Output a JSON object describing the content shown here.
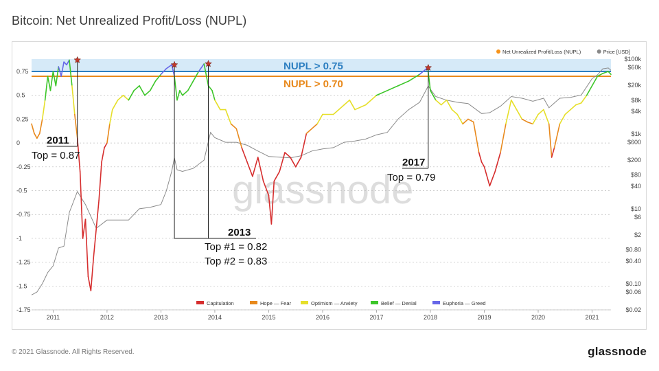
{
  "page": {
    "title": "Bitcoin: Net Unrealized Profit/Loss (NUPL)",
    "copyright": "© 2021 Glassnode. All Rights Reserved.",
    "logo": "glassnode",
    "watermark": "glassnode"
  },
  "chart_data": {
    "type": "line",
    "title": "Bitcoin: Net Unrealized Profit/Loss (NUPL)",
    "xlabel": "",
    "ylabel": "",
    "x_tick_labels": [
      "2011",
      "2012",
      "2013",
      "2014",
      "2015",
      "2016",
      "2017",
      "2018",
      "2019",
      "2020",
      "2021"
    ],
    "x_range": [
      2010.6,
      2021.35
    ],
    "y_left": {
      "tick_labels": [
        "0.75",
        "0.5",
        "0.25",
        "0",
        "-0.25",
        "-0.5",
        "-0.75",
        "-1",
        "-1.25",
        "-1.5",
        "-1.75"
      ],
      "ticks": [
        0.75,
        0.5,
        0.25,
        0,
        -0.25,
        -0.5,
        -0.75,
        -1,
        -1.25,
        -1.5,
        -1.75
      ],
      "range": [
        -1.75,
        0.88
      ]
    },
    "y_right": {
      "scale": "log",
      "tick_labels": [
        "$100k",
        "$60k",
        "$20k",
        "$8k",
        "$4k",
        "$1k",
        "$600",
        "$200",
        "$80",
        "$40",
        "$10",
        "$6",
        "$2",
        "$0.80",
        "$0.40",
        "$0.10",
        "$0.06",
        "$0.02"
      ],
      "ticks": [
        100000,
        60000,
        20000,
        8000,
        4000,
        1000,
        600,
        200,
        80,
        40,
        10,
        6,
        2,
        0.8,
        0.4,
        0.1,
        0.06,
        0.02
      ],
      "range": [
        0.02,
        100000
      ]
    },
    "legend_top": [
      {
        "name": "Net Unrealized Profit/Loss (NUPL)",
        "color": "#f7931a"
      },
      {
        "name": "Price [USD]",
        "color": "#888888"
      }
    ],
    "legend_bottom": [
      {
        "name": "Capitulation",
        "color": "#d62e2e"
      },
      {
        "name": "Hope — Fear",
        "color": "#e8891c"
      },
      {
        "name": "Optimism — Anxiety",
        "color": "#e6df2a"
      },
      {
        "name": "Belief — Denial",
        "color": "#3cc629"
      },
      {
        "name": "Euphoria — Greed",
        "color": "#6767e8"
      }
    ],
    "zone_colors": {
      "capitulation": "#d62e2e",
      "hope": "#e8891c",
      "optimism": "#e6df2a",
      "belief": "#3cc629",
      "euphoria": "#6767e8"
    },
    "thresholds": [
      {
        "label": "NUPL > 0.75",
        "value": 0.75,
        "color": "#2d7fc1"
      },
      {
        "label": "NUPL > 0.70",
        "value": 0.7,
        "color": "#e8891c"
      }
    ],
    "nupl_series": {
      "name": "Net Unrealized Profit/Loss (NUPL)",
      "x": [
        2010.6,
        2010.65,
        2010.7,
        2010.75,
        2010.8,
        2010.85,
        2010.9,
        2010.95,
        2011.0,
        2011.05,
        2011.1,
        2011.15,
        2011.2,
        2011.25,
        2011.3,
        2011.35,
        2011.4,
        2011.45,
        2011.5,
        2011.55,
        2011.6,
        2011.65,
        2011.7,
        2011.75,
        2011.8,
        2011.85,
        2011.9,
        2011.95,
        2012.0,
        2012.05,
        2012.1,
        2012.2,
        2012.3,
        2012.4,
        2012.5,
        2012.6,
        2012.7,
        2012.8,
        2012.9,
        2013.0,
        2013.1,
        2013.2,
        2013.25,
        2013.3,
        2013.35,
        2013.4,
        2013.5,
        2013.6,
        2013.7,
        2013.8,
        2013.88,
        2013.95,
        2014.0,
        2014.1,
        2014.2,
        2014.3,
        2014.4,
        2014.5,
        2014.6,
        2014.7,
        2014.8,
        2014.9,
        2015.0,
        2015.05,
        2015.1,
        2015.2,
        2015.3,
        2015.4,
        2015.5,
        2015.6,
        2015.7,
        2015.8,
        2015.9,
        2016.0,
        2016.2,
        2016.4,
        2016.5,
        2016.6,
        2016.8,
        2017.0,
        2017.2,
        2017.4,
        2017.6,
        2017.8,
        2017.95,
        2018.0,
        2018.1,
        2018.2,
        2018.3,
        2018.4,
        2018.5,
        2018.6,
        2018.7,
        2018.8,
        2018.9,
        2018.95,
        2019.0,
        2019.1,
        2019.2,
        2019.3,
        2019.4,
        2019.5,
        2019.6,
        2019.7,
        2019.8,
        2019.9,
        2020.0,
        2020.1,
        2020.2,
        2020.25,
        2020.3,
        2020.4,
        2020.5,
        2020.6,
        2020.7,
        2020.8,
        2020.9,
        2021.0,
        2021.1,
        2021.2,
        2021.3,
        2021.35
      ],
      "y": [
        0.2,
        0.1,
        0.05,
        0.1,
        0.25,
        0.45,
        0.7,
        0.55,
        0.75,
        0.6,
        0.8,
        0.7,
        0.85,
        0.82,
        0.87,
        0.6,
        0.3,
        0.05,
        -0.3,
        -1.0,
        -0.8,
        -1.4,
        -1.55,
        -1.2,
        -0.9,
        -0.6,
        -0.2,
        -0.05,
        0.0,
        0.2,
        0.35,
        0.45,
        0.5,
        0.45,
        0.55,
        0.6,
        0.5,
        0.55,
        0.65,
        0.72,
        0.78,
        0.82,
        0.7,
        0.45,
        0.55,
        0.5,
        0.55,
        0.65,
        0.75,
        0.83,
        0.6,
        0.55,
        0.45,
        0.35,
        0.35,
        0.2,
        0.15,
        -0.05,
        -0.2,
        -0.35,
        -0.15,
        -0.4,
        -0.55,
        -0.85,
        -0.4,
        -0.3,
        -0.1,
        -0.15,
        -0.25,
        -0.15,
        0.1,
        0.15,
        0.2,
        0.3,
        0.3,
        0.4,
        0.45,
        0.35,
        0.4,
        0.5,
        0.55,
        0.6,
        0.65,
        0.72,
        0.79,
        0.55,
        0.45,
        0.4,
        0.45,
        0.35,
        0.3,
        0.2,
        0.25,
        0.22,
        -0.1,
        -0.2,
        -0.25,
        -0.45,
        -0.3,
        -0.1,
        0.2,
        0.45,
        0.35,
        0.25,
        0.22,
        0.2,
        0.3,
        0.35,
        0.2,
        -0.15,
        -0.05,
        0.2,
        0.3,
        0.35,
        0.4,
        0.42,
        0.5,
        0.6,
        0.7,
        0.73,
        0.75,
        0.72
      ]
    },
    "price_series": {
      "name": "Price [USD]",
      "x": [
        2010.6,
        2010.7,
        2010.8,
        2010.9,
        2011.0,
        2011.1,
        2011.2,
        2011.3,
        2011.45,
        2011.6,
        2011.8,
        2012.0,
        2012.2,
        2012.4,
        2012.6,
        2012.8,
        2013.0,
        2013.1,
        2013.2,
        2013.25,
        2013.3,
        2013.4,
        2013.6,
        2013.8,
        2013.92,
        2014.0,
        2014.2,
        2014.4,
        2014.6,
        2014.8,
        2015.0,
        2015.2,
        2015.4,
        2015.6,
        2015.8,
        2016.0,
        2016.2,
        2016.4,
        2016.6,
        2016.8,
        2017.0,
        2017.2,
        2017.4,
        2017.6,
        2017.8,
        2017.96,
        2018.1,
        2018.3,
        2018.5,
        2018.7,
        2018.95,
        2019.1,
        2019.3,
        2019.5,
        2019.7,
        2019.9,
        2020.1,
        2020.2,
        2020.4,
        2020.6,
        2020.8,
        2021.0,
        2021.1,
        2021.2,
        2021.3,
        2021.35
      ],
      "y": [
        0.05,
        0.06,
        0.1,
        0.2,
        0.3,
        0.9,
        1.0,
        8,
        29,
        13,
        3,
        5,
        5,
        5,
        10,
        11,
        13,
        30,
        100,
        230,
        110,
        100,
        120,
        200,
        1100,
        800,
        600,
        600,
        500,
        350,
        250,
        240,
        230,
        260,
        350,
        400,
        430,
        600,
        650,
        730,
        950,
        1100,
        2500,
        4500,
        7000,
        19000,
        10000,
        8000,
        7000,
        6500,
        3500,
        3700,
        5500,
        10000,
        9000,
        7500,
        9000,
        5000,
        9000,
        9500,
        11000,
        30000,
        38000,
        55000,
        58000,
        50000
      ]
    },
    "peaks": [
      {
        "label_title": "2011",
        "label_text": "Top = 0.87",
        "x": 2011.45,
        "y": 0.87
      },
      {
        "label_title": "2013",
        "label_text": "Top #1 = 0.82",
        "label_text2": "Top #2 = 0.83",
        "x": 2013.25,
        "y": 0.82,
        "x2": 2013.88,
        "y2": 0.83
      },
      {
        "label_title": "2017",
        "label_text": "Top = 0.79",
        "x": 2017.96,
        "y": 0.79
      }
    ],
    "grid": "horizontal dashed",
    "legend_placement": "top-right (series) and bottom-center (zones)"
  }
}
